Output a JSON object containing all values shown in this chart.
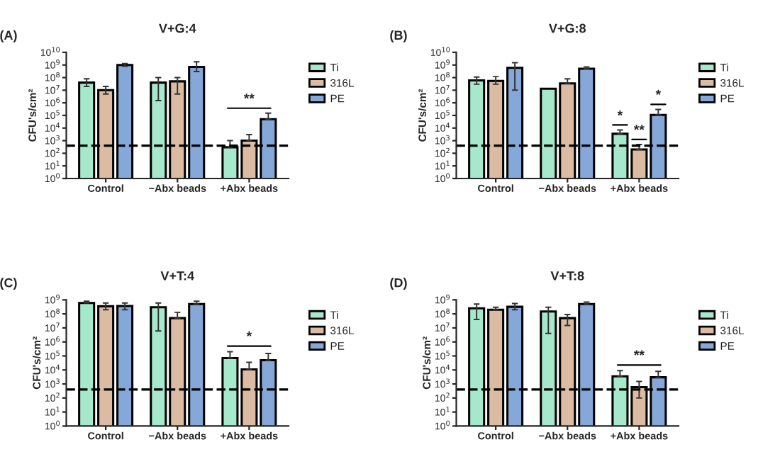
{
  "chart_data": [
    {
      "type": "bar",
      "title": "V+G:4",
      "ylabel": "CFU's/cm²",
      "categories": [
        "Control",
        "−Abx beads",
        "+Abx beads"
      ],
      "log": true,
      "ylim": [
        1,
        10000000000.0
      ],
      "yticks": [
        {
          "value": 1,
          "label": "10$^{0}$"
        },
        {
          "value": 10,
          "label": "10$^{1}$"
        },
        {
          "value": 100,
          "label": "10$^{2}$"
        },
        {
          "value": 1000,
          "label": "10$^{3}$"
        },
        {
          "value": 10000,
          "label": "10$^{4}$"
        },
        {
          "value": 100000,
          "label": "10$^{5}$"
        },
        {
          "value": 1000000,
          "label": "10$^{6}$"
        },
        {
          "value": 10000000,
          "label": "10$^{7}$"
        },
        {
          "value": 100000000,
          "label": "10$^{8}$"
        },
        {
          "value": 1000000000,
          "label": "10$^{9}$"
        },
        {
          "value": 10000000000,
          "label": "10$^{10}$"
        }
      ],
      "series": [
        {
          "name": "Ti",
          "color": "#a6e8cc",
          "values": [
            40000000.0,
            40000000.0,
            300
          ],
          "errors": [
            [
              20000000.0,
              80000000.0
            ],
            [
              1500000.0,
              100000000.0
            ],
            [
              300,
              1000
            ]
          ]
        },
        {
          "name": "316L",
          "color": "#dcbba3",
          "values": [
            10000000.0,
            50000000.0,
            1000
          ],
          "errors": [
            [
              5000000.0,
              20000000.0
            ],
            [
              5000000.0,
              100000000.0
            ],
            [
              1000,
              3000
            ]
          ]
        },
        {
          "name": "PE",
          "color": "#86a8d8",
          "values": [
            1000000000.0,
            700000000.0,
            50000.0
          ],
          "errors": [
            [
              800000000.0,
              1300000000.0
            ],
            [
              300000000.0,
              1800000000.0
            ],
            [
              50000.0,
              150000.0
            ]
          ]
        }
      ],
      "ref_lines": [
        {
          "axis": "y",
          "value": 400,
          "line_style": "dashed",
          "color": "#000000"
        }
      ],
      "annotations": [
        "(A)",
        "**"
      ],
      "legend": "right",
      "grid": false
    },
    {
      "type": "bar",
      "title": "V+G:8",
      "ylabel": "CFU's/cm²",
      "categories": [
        "Control",
        "−Abx beads",
        "+Abx beads"
      ],
      "log": true,
      "ylim": [
        1,
        10000000000.0
      ],
      "yticks": [
        {
          "value": 1,
          "label": "10$^{0}$"
        },
        {
          "value": 10,
          "label": "10$^{1}$"
        },
        {
          "value": 100,
          "label": "10$^{2}$"
        },
        {
          "value": 1000,
          "label": "10$^{3}$"
        },
        {
          "value": 10000,
          "label": "10$^{4}$"
        },
        {
          "value": 100000,
          "label": "10$^{5}$"
        },
        {
          "value": 1000000,
          "label": "10$^{6}$"
        },
        {
          "value": 10000000,
          "label": "10$^{7}$"
        },
        {
          "value": 100000000,
          "label": "10$^{8}$"
        },
        {
          "value": 1000000000,
          "label": "10$^{9}$"
        },
        {
          "value": 10000000000,
          "label": "10$^{10}$"
        }
      ],
      "series": [
        {
          "name": "Ti",
          "color": "#a6e8cc",
          "values": [
            60000000.0,
            13000000.0,
            3500
          ],
          "errors": [
            [
              30000000.0,
              110000000.0
            ],
            null,
            [
              3500,
              7000
            ]
          ]
        },
        {
          "name": "316L",
          "color": "#dcbba3",
          "values": [
            55000000.0,
            35000000.0,
            200
          ],
          "errors": [
            [
              30000000.0,
              120000000.0
            ],
            [
              35000000.0,
              80000000.0
            ],
            [
              200,
              500
            ]
          ]
        },
        {
          "name": "PE",
          "color": "#86a8d8",
          "values": [
            600000000.0,
            500000000.0,
            110000.0
          ],
          "errors": [
            [
              10000000.0,
              1500000000.0
            ],
            [
              500000000.0,
              700000000.0
            ],
            [
              110000.0,
              300000.0
            ]
          ]
        }
      ],
      "ref_lines": [
        {
          "axis": "y",
          "value": 400,
          "line_style": "dashed",
          "color": "#000000"
        }
      ],
      "annotations": [
        "(B)",
        "*",
        "**",
        "*"
      ],
      "legend": "right",
      "grid": false
    },
    {
      "type": "bar",
      "title": "V+T:4",
      "ylabel": "CFU's/cm²",
      "categories": [
        "Control",
        "−Abx beads",
        "+Abx beads"
      ],
      "log": true,
      "ylim": [
        1,
        1000000000.0
      ],
      "yticks": [
        {
          "value": 1,
          "label": "10$^{0}$"
        },
        {
          "value": 10,
          "label": "10$^{1}$"
        },
        {
          "value": 100,
          "label": "10$^{2}$"
        },
        {
          "value": 1000,
          "label": "10$^{3}$"
        },
        {
          "value": 10000,
          "label": "10$^{4}$"
        },
        {
          "value": 100000,
          "label": "10$^{5}$"
        },
        {
          "value": 1000000,
          "label": "10$^{6}$"
        },
        {
          "value": 10000000,
          "label": "10$^{7}$"
        },
        {
          "value": 100000000,
          "label": "10$^{8}$"
        },
        {
          "value": 1000000000,
          "label": "10$^{9}$"
        }
      ],
      "series": [
        {
          "name": "Ti",
          "color": "#a6e8cc",
          "values": [
            600000000.0,
            300000000.0,
            70000.0
          ],
          "errors": [
            [
              600000000.0,
              800000000.0
            ],
            [
              6000000.0,
              600000000.0
            ],
            [
              70000.0,
              200000.0
            ]
          ]
        },
        {
          "name": "316L",
          "color": "#dcbba3",
          "values": [
            350000000.0,
            50000000.0,
            11000.0
          ],
          "errors": [
            [
              200000000.0,
              600000000.0
            ],
            [
              50000000.0,
              130000000.0
            ],
            [
              11000.0,
              35000.0
            ]
          ]
        },
        {
          "name": "PE",
          "color": "#86a8d8",
          "values": [
            370000000.0,
            500000000.0,
            50000.0
          ],
          "errors": [
            [
              200000000.0,
              600000000.0
            ],
            [
              500000000.0,
              800000000.0
            ],
            [
              50000.0,
              150000.0
            ]
          ]
        }
      ],
      "ref_lines": [
        {
          "axis": "y",
          "value": 400,
          "line_style": "dashed",
          "color": "#000000"
        }
      ],
      "annotations": [
        "(C)",
        "*"
      ],
      "legend": "right",
      "grid": false
    },
    {
      "type": "bar",
      "title": "V+T:8",
      "ylabel": "CFU's/cm²",
      "categories": [
        "Control",
        "−Abx beads",
        "+Abx beads"
      ],
      "log": true,
      "ylim": [
        1,
        1000000000.0
      ],
      "yticks": [
        {
          "value": 1,
          "label": "10$^{0}$"
        },
        {
          "value": 10,
          "label": "10$^{1}$"
        },
        {
          "value": 100,
          "label": "10$^{2}$"
        },
        {
          "value": 1000,
          "label": "10$^{3}$"
        },
        {
          "value": 10000,
          "label": "10$^{4}$"
        },
        {
          "value": 100000,
          "label": "10$^{5}$"
        },
        {
          "value": 1000000,
          "label": "10$^{6}$"
        },
        {
          "value": 10000000,
          "label": "10$^{7}$"
        },
        {
          "value": 100000000,
          "label": "10$^{8}$"
        },
        {
          "value": 1000000000,
          "label": "10$^{9}$"
        }
      ],
      "series": [
        {
          "name": "Ti",
          "color": "#a6e8cc",
          "values": [
            250000000.0,
            150000000.0,
            3500
          ],
          "errors": [
            [
              40000000.0,
              500000000.0
            ],
            [
              4000000.0,
              300000000.0
            ],
            [
              3500,
              9000
            ]
          ]
        },
        {
          "name": "316L",
          "color": "#dcbba3",
          "values": [
            200000000.0,
            50000000.0,
            600
          ],
          "errors": [
            [
              200000000.0,
              300000000.0
            ],
            [
              15000000.0,
              90000000.0
            ],
            [
              100,
              1500
            ]
          ]
        },
        {
          "name": "PE",
          "color": "#86a8d8",
          "values": [
            320000000.0,
            500000000.0,
            3000
          ],
          "errors": [
            [
              200000000.0,
              550000000.0
            ],
            [
              500000000.0,
              700000000.0
            ],
            [
              3000,
              8000
            ]
          ]
        }
      ],
      "ref_lines": [
        {
          "axis": "y",
          "value": 400,
          "line_style": "dashed",
          "color": "#000000"
        }
      ],
      "annotations": [
        "(D)",
        "**"
      ],
      "legend": "right",
      "grid": false
    }
  ]
}
